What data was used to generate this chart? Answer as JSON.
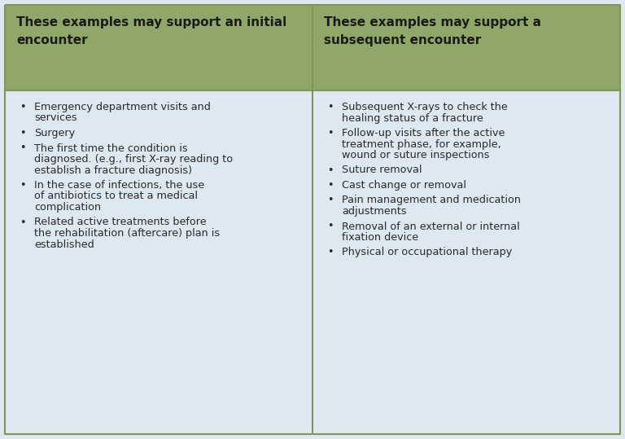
{
  "header_bg_color": "#8fa869",
  "body_bg_color": "#dde8f0",
  "border_color": "#7a9a52",
  "header_text_color": "#1a1a1a",
  "body_text_color": "#2a2a2a",
  "col1_header": "These examples may support an initial\nencounter",
  "col2_header": "These examples may support a\nsubsequent encounter",
  "col1_items": [
    "Emergency department visits and\nservices",
    "Surgery",
    "The first time the condition is\ndiagnosed. (e.g., first X-ray reading to\nestablish a fracture diagnosis)",
    "In the case of infections, the use\nof antibiotics to treat a medical\ncomplication",
    "Related active treatments before\nthe rehabilitation (aftercare) plan is\nestablished"
  ],
  "col2_items": [
    "Subsequent X-rays to check the\nhealing status of a fracture",
    "Follow-up visits after the active\ntreatment phase, for example,\nwound or suture inspections",
    "Suture removal",
    "Cast change or removal",
    "Pain management and medication\nadjustments",
    "Removal of an external or internal\nfixation device",
    "Physical or occupational therapy"
  ],
  "fig_width": 7.68,
  "fig_height": 5.39,
  "dpi": 100
}
